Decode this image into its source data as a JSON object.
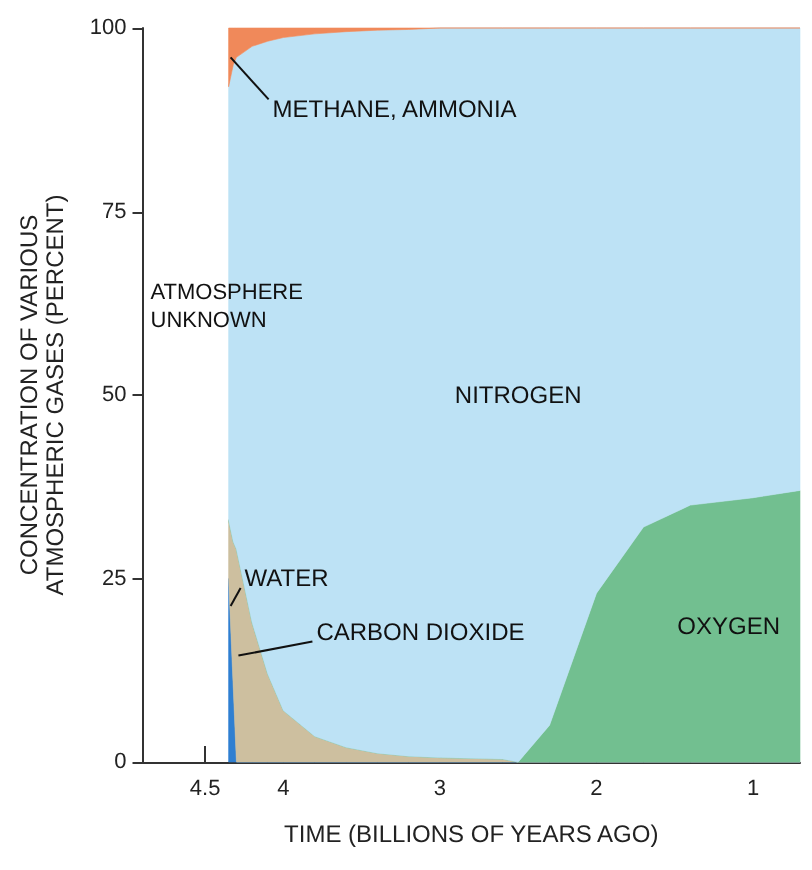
{
  "chart_data": {
    "type": "area",
    "stacked": true,
    "xlabel": "TIME (BILLIONS OF YEARS AGO)",
    "ylabel": "CONCENTRATION OF VARIOUS\nATMOSPHERIC GASES (PERCENT)",
    "x": [
      4.35,
      4.32,
      4.3,
      4.2,
      4.1,
      4.0,
      3.8,
      3.6,
      3.4,
      3.2,
      3.0,
      2.6,
      2.5,
      2.3,
      2.0,
      1.7,
      1.4,
      1.0,
      0.7
    ],
    "series": [
      {
        "name": "WATER",
        "color": "#2f7fd1",
        "values": [
          25,
          10,
          0,
          0,
          0,
          0,
          0,
          0,
          0,
          0,
          0,
          0,
          0,
          0,
          0,
          0,
          0,
          0,
          0
        ]
      },
      {
        "name": "CARBON DIOXIDE",
        "color": "#cdbf9f",
        "values": [
          8,
          20,
          29,
          19,
          12,
          7,
          3.5,
          2,
          1.2,
          0.8,
          0.6,
          0.4,
          0,
          0,
          0,
          0,
          0,
          0,
          0
        ]
      },
      {
        "name": "OXYGEN",
        "color": "#72bf90",
        "values": [
          0,
          0,
          0,
          0,
          0,
          0,
          0,
          0,
          0,
          0,
          0,
          0,
          0,
          5,
          23,
          32,
          35,
          36,
          37
        ]
      },
      {
        "name": "NITROGEN",
        "color": "#bde2f5",
        "values": [
          59,
          65,
          67,
          78.5,
          86.2,
          91.7,
          95.7,
          97.5,
          98.5,
          99,
          99.4,
          99.6,
          100,
          95,
          77,
          68,
          65,
          64,
          63
        ]
      },
      {
        "name": "METHANE, AMMONIA",
        "color": "#f0895a",
        "values": [
          8,
          5,
          4,
          2.5,
          1.8,
          1.3,
          0.8,
          0.5,
          0.3,
          0.2,
          0,
          0,
          0,
          0,
          0,
          0,
          0,
          0,
          0
        ]
      }
    ],
    "xlim": [
      4.9,
      0.7
    ],
    "xticks": [
      4.5,
      4,
      3,
      2,
      1
    ],
    "ylim": [
      0,
      100
    ],
    "yticks": [
      0,
      25,
      50,
      75,
      100
    ],
    "annotations": [
      "ATMOSPHERE\nUNKNOWN"
    ],
    "grid": false,
    "legend": false
  }
}
